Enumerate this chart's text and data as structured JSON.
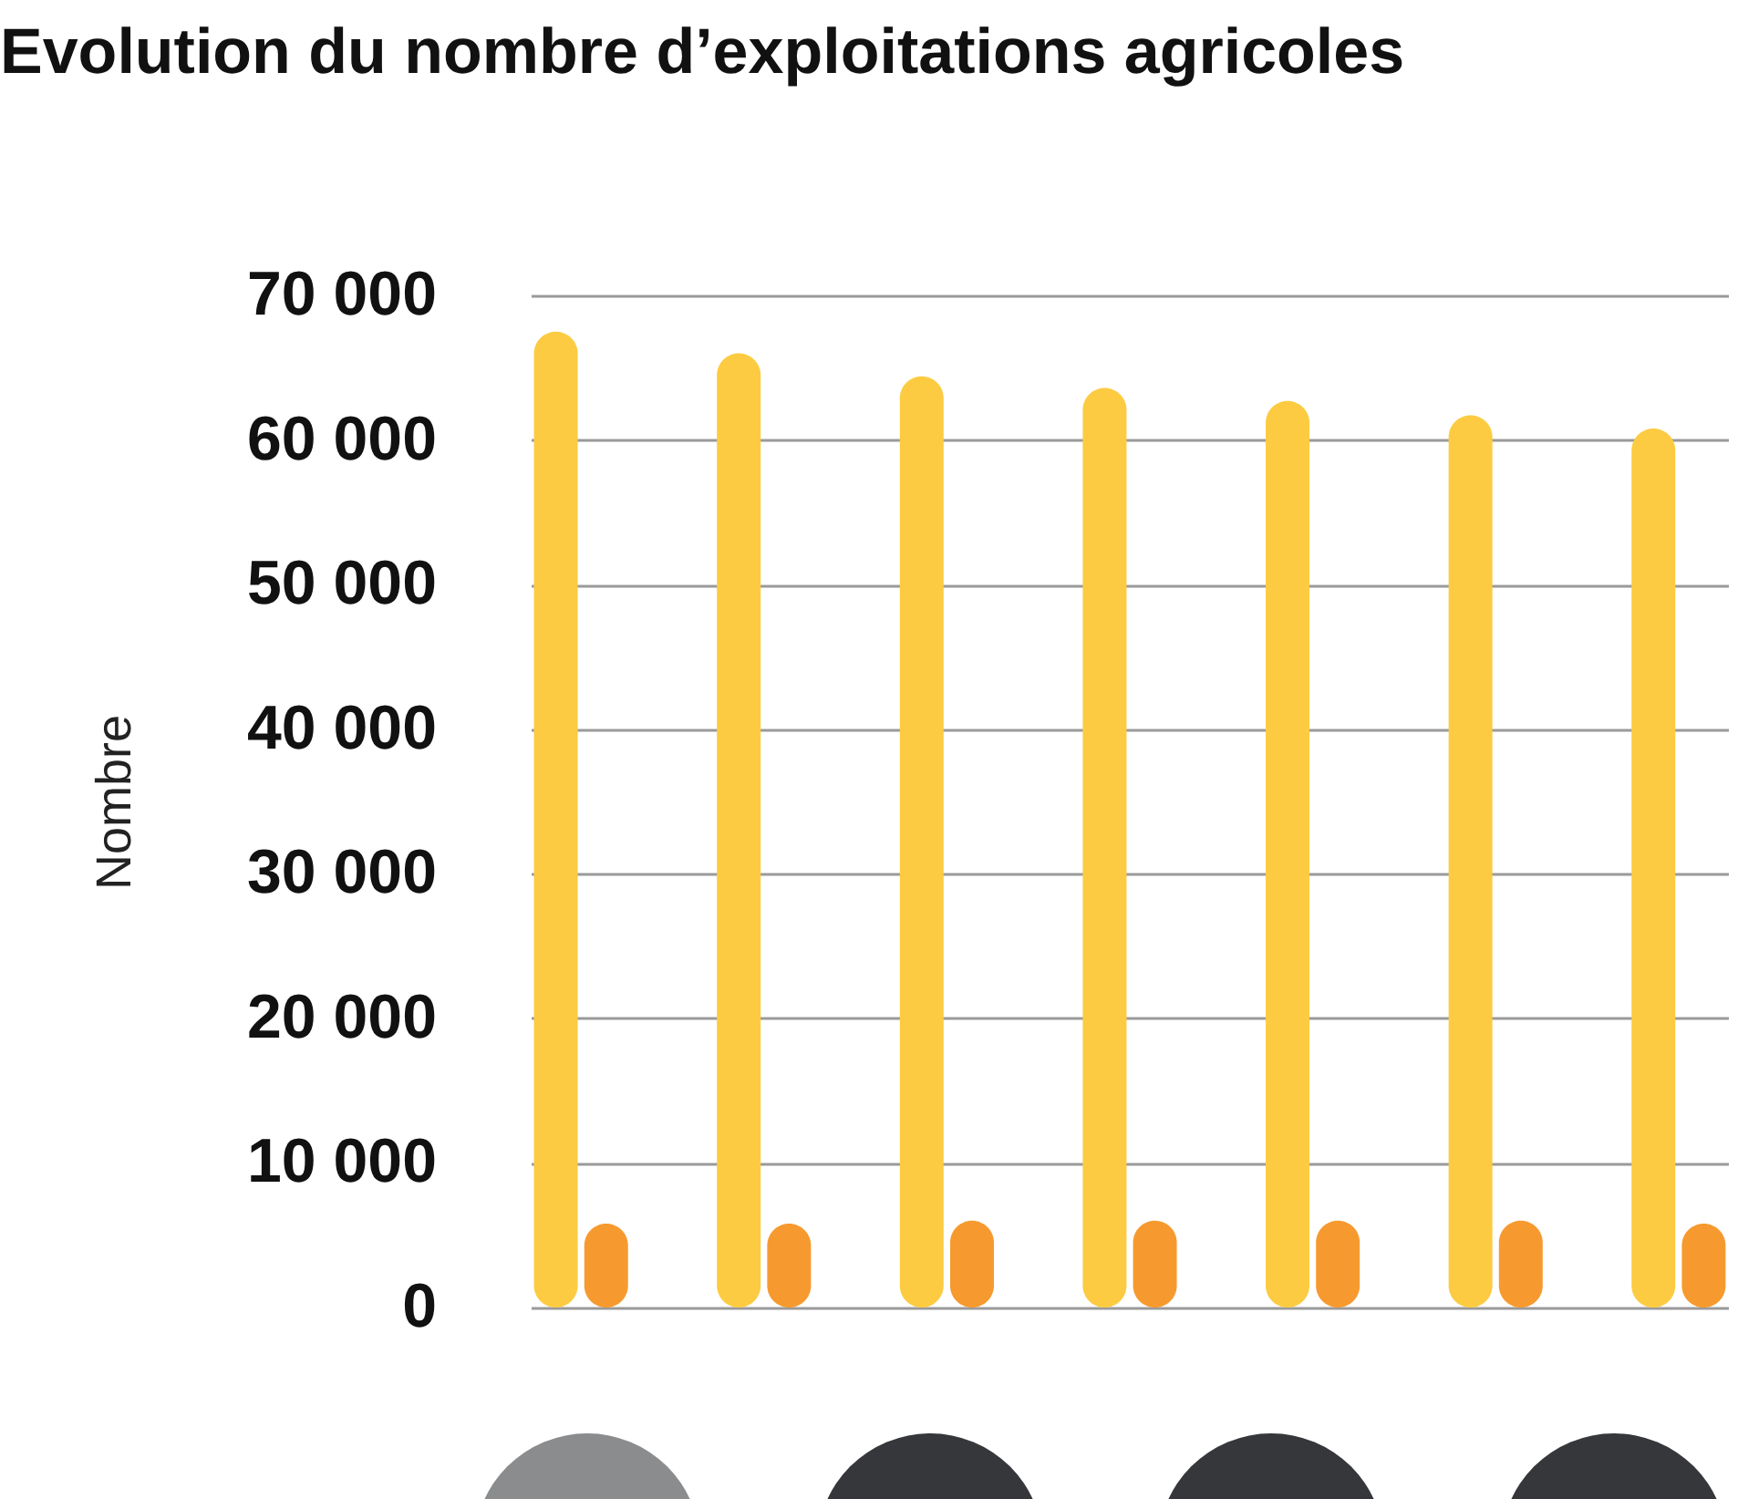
{
  "chart_data": {
    "type": "bar",
    "title": "Evolution du nombre d’exploitations agricoles",
    "ylabel": "Nombre",
    "categories": [
      null,
      null,
      null,
      null,
      null,
      null,
      null
    ],
    "series": [
      {
        "color": "#fccb41",
        "values": [
          67500,
          66000,
          64400,
          63600,
          62700,
          61700,
          60800
        ]
      },
      {
        "color": "#f69a2f",
        "values": [
          5800,
          5800,
          6000,
          6000,
          6000,
          6000,
          5800
        ]
      }
    ],
    "ylim": [
      0,
      70000
    ],
    "yticks": [
      {
        "value": 0,
        "label": "0"
      },
      {
        "value": 10000,
        "label": "10 000"
      },
      {
        "value": 20000,
        "label": "20 000"
      },
      {
        "value": 30000,
        "label": "30 000"
      },
      {
        "value": 40000,
        "label": "40 000"
      },
      {
        "value": 50000,
        "label": "50 000"
      },
      {
        "value": 60000,
        "label": "60 000"
      },
      {
        "value": 70000,
        "label": "70 000"
      }
    ],
    "grid": "y",
    "legend": false
  }
}
